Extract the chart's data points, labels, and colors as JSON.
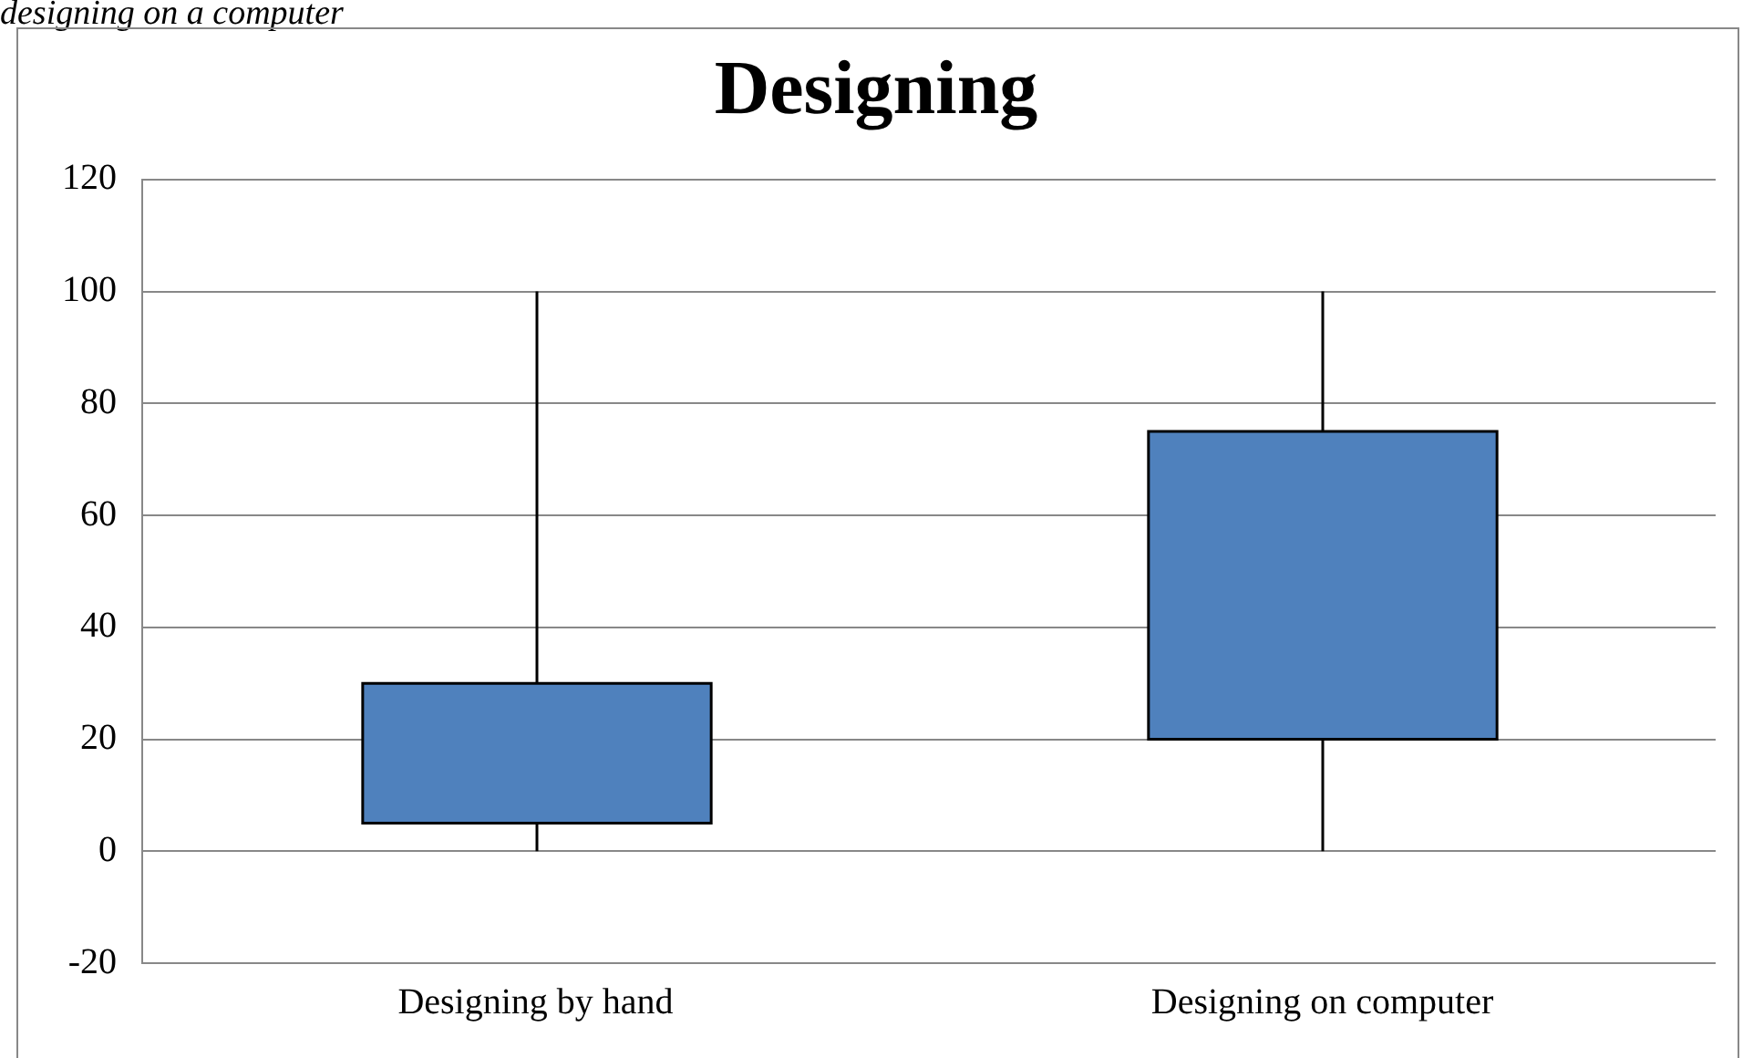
{
  "chart_data": {
    "type": "candlestick",
    "title": "Designing",
    "annotations": [
      "designing on a computer"
    ],
    "categories": [
      "Designing by hand",
      "Designing on computer"
    ],
    "ohlc": [
      [
        5,
        100,
        0,
        30
      ],
      [
        20,
        100,
        0,
        75
      ]
    ],
    "color": "#4f81bd",
    "ylim": [
      -20,
      120
    ],
    "yticks": [
      -20,
      0,
      20,
      40,
      60,
      80,
      100,
      120
    ],
    "grid": "y",
    "legend": false
  }
}
